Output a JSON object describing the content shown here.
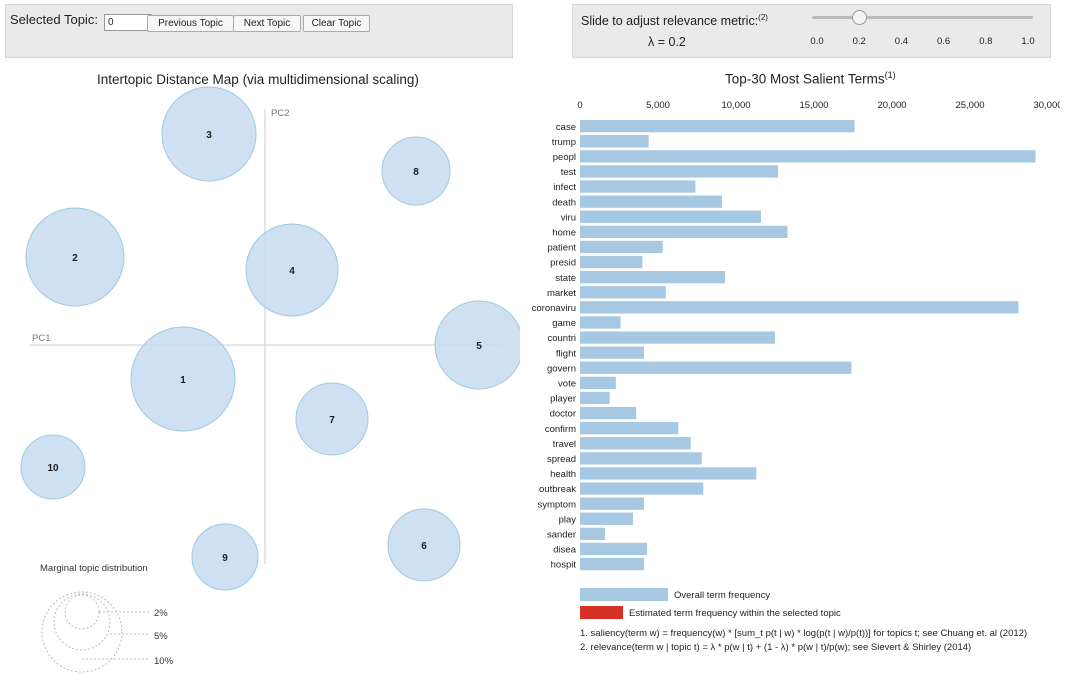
{
  "controls": {
    "selected_topic_label": "Selected Topic:",
    "selected_topic_value": "0",
    "previous_label": "Previous Topic",
    "next_label": "Next Topic",
    "clear_label": "Clear Topic"
  },
  "relevance": {
    "slider_label": "Slide to adjust relevance metric:",
    "slider_note": "(2)",
    "lambda_text": "λ = 0.2",
    "lambda_value": 0.2,
    "ticks": [
      "0.0",
      "0.2",
      "0.4",
      "0.6",
      "0.8",
      "1.0"
    ]
  },
  "topic_map": {
    "title": "Intertopic Distance Map (via multidimensional scaling)",
    "pc1_label": "PC1",
    "pc2_label": "PC2",
    "topics": [
      {
        "id": "1"
      },
      {
        "id": "2"
      },
      {
        "id": "3"
      },
      {
        "id": "4"
      },
      {
        "id": "5"
      },
      {
        "id": "6"
      },
      {
        "id": "7"
      },
      {
        "id": "8"
      },
      {
        "id": "9"
      },
      {
        "id": "10"
      }
    ],
    "marginal": {
      "title": "Marginal topic distribution",
      "levels": [
        "2%",
        "5%",
        "10%"
      ]
    },
    "colors": {
      "circle_fill": "#c6dbef",
      "circle_stroke": "#9ecae1",
      "axis": "#cfcfcf"
    }
  },
  "chart_data": {
    "type": "bar",
    "title": "Top-30 Most Salient Terms",
    "title_note": "(1)",
    "xlim": [
      0,
      30000
    ],
    "ticks": [
      "0",
      "5,000",
      "10,000",
      "15,000",
      "20,000",
      "25,000",
      "30,000"
    ],
    "categories": [
      "case",
      "trump",
      "peopl",
      "test",
      "infect",
      "death",
      "viru",
      "home",
      "patient",
      "presid",
      "state",
      "market",
      "coronaviru",
      "game",
      "countri",
      "flight",
      "govern",
      "vote",
      "player",
      "doctor",
      "confirm",
      "travel",
      "spread",
      "health",
      "outbreak",
      "symptom",
      "play",
      "sander",
      "disea",
      "hospit"
    ],
    "series": [
      {
        "name": "Overall term frequency",
        "values": [
          17600,
          4400,
          29200,
          12700,
          7400,
          9100,
          11600,
          13300,
          5300,
          4000,
          9300,
          5500,
          28100,
          2600,
          12500,
          4100,
          17400,
          2300,
          1900,
          3600,
          6300,
          7100,
          7800,
          11300,
          7900,
          4100,
          3400,
          1600,
          4300,
          4100
        ],
        "color": "#a6c8e2"
      }
    ],
    "legend": [
      {
        "label": "Overall term frequency",
        "color": "#a6c8e2"
      },
      {
        "label": "Estimated term frequency within the selected topic",
        "color": "#d73027"
      }
    ]
  },
  "footnotes": {
    "note1": "1. saliency(term w) = frequency(w) * [sum_t p(t | w) * log(p(t | w)/p(t))] for topics t; see Chuang et. al (2012)",
    "note2": "2. relevance(term w | topic t) = λ * p(w | t) + (1 - λ) * p(w | t)/p(w); see Sievert & Shirley (2014)"
  }
}
